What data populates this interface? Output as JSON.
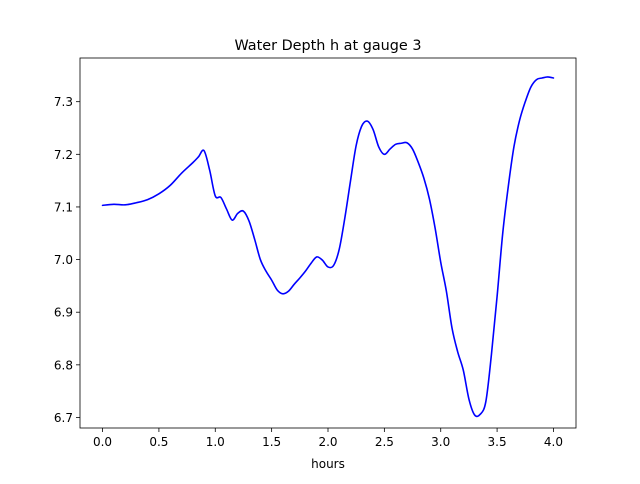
{
  "chart_data": {
    "type": "line",
    "title": "Water Depth h at gauge 3",
    "xlabel": "hours",
    "ylabel": "",
    "xlim": [
      -0.2,
      4.2
    ],
    "ylim": [
      6.68,
      7.383
    ],
    "xticks": [
      0.0,
      0.5,
      1.0,
      1.5,
      2.0,
      2.5,
      3.0,
      3.5,
      4.0
    ],
    "xtick_labels": [
      "0.0",
      "0.5",
      "1.0",
      "1.5",
      "2.0",
      "2.5",
      "3.0",
      "3.5",
      "4.0"
    ],
    "yticks": [
      6.7,
      6.8,
      6.9,
      7.0,
      7.1,
      7.2,
      7.3
    ],
    "ytick_labels": [
      "6.7",
      "6.8",
      "6.9",
      "7.0",
      "7.1",
      "7.2",
      "7.3"
    ],
    "grid": false,
    "colors": {
      "line": "#0000ff",
      "axes": "#000000",
      "background": "#ffffff"
    },
    "series": [
      {
        "points": [
          [
            0.0,
            7.103
          ],
          [
            0.1,
            7.105
          ],
          [
            0.2,
            7.104
          ],
          [
            0.3,
            7.108
          ],
          [
            0.4,
            7.114
          ],
          [
            0.5,
            7.125
          ],
          [
            0.6,
            7.141
          ],
          [
            0.7,
            7.164
          ],
          [
            0.8,
            7.184
          ],
          [
            0.85,
            7.195
          ],
          [
            0.9,
            7.207
          ],
          [
            0.95,
            7.17
          ],
          [
            1.0,
            7.121
          ],
          [
            1.05,
            7.118
          ],
          [
            1.1,
            7.096
          ],
          [
            1.15,
            7.075
          ],
          [
            1.2,
            7.088
          ],
          [
            1.25,
            7.092
          ],
          [
            1.3,
            7.073
          ],
          [
            1.35,
            7.038
          ],
          [
            1.4,
            7.0
          ],
          [
            1.45,
            6.978
          ],
          [
            1.5,
            6.961
          ],
          [
            1.55,
            6.942
          ],
          [
            1.6,
            6.935
          ],
          [
            1.65,
            6.94
          ],
          [
            1.7,
            6.953
          ],
          [
            1.75,
            6.965
          ],
          [
            1.8,
            6.978
          ],
          [
            1.85,
            6.993
          ],
          [
            1.9,
            7.005
          ],
          [
            1.95,
            6.999
          ],
          [
            2.0,
            6.986
          ],
          [
            2.05,
            6.989
          ],
          [
            2.1,
            7.02
          ],
          [
            2.15,
            7.08
          ],
          [
            2.2,
            7.15
          ],
          [
            2.25,
            7.217
          ],
          [
            2.3,
            7.254
          ],
          [
            2.35,
            7.263
          ],
          [
            2.4,
            7.247
          ],
          [
            2.45,
            7.214
          ],
          [
            2.5,
            7.2
          ],
          [
            2.55,
            7.21
          ],
          [
            2.6,
            7.219
          ],
          [
            2.65,
            7.221
          ],
          [
            2.7,
            7.222
          ],
          [
            2.75,
            7.21
          ],
          [
            2.8,
            7.185
          ],
          [
            2.85,
            7.155
          ],
          [
            2.9,
            7.115
          ],
          [
            2.95,
            7.06
          ],
          [
            3.0,
            6.995
          ],
          [
            3.05,
            6.94
          ],
          [
            3.1,
            6.87
          ],
          [
            3.15,
            6.825
          ],
          [
            3.2,
            6.79
          ],
          [
            3.25,
            6.735
          ],
          [
            3.3,
            6.705
          ],
          [
            3.35,
            6.706
          ],
          [
            3.4,
            6.73
          ],
          [
            3.45,
            6.82
          ],
          [
            3.5,
            6.93
          ],
          [
            3.55,
            7.05
          ],
          [
            3.6,
            7.14
          ],
          [
            3.65,
            7.215
          ],
          [
            3.7,
            7.265
          ],
          [
            3.75,
            7.3
          ],
          [
            3.8,
            7.328
          ],
          [
            3.85,
            7.342
          ],
          [
            3.9,
            7.345
          ],
          [
            3.95,
            7.347
          ],
          [
            4.0,
            7.345
          ]
        ]
      }
    ]
  }
}
